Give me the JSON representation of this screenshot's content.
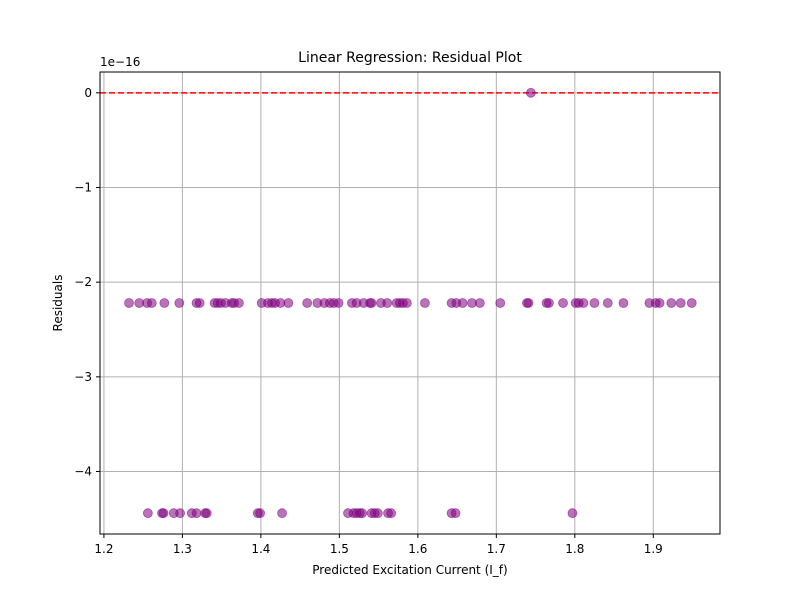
{
  "chart_data": {
    "type": "scatter",
    "title": "Linear Regression: Residual Plot",
    "xlabel": "Predicted Excitation Current (I_f)",
    "ylabel": "Residuals",
    "y_offset_text": "1e−16",
    "xlim": [
      1.195,
      1.985
    ],
    "ylim": [
      -4.66,
      0.22
    ],
    "x_ticks": [
      1.2,
      1.3,
      1.4,
      1.5,
      1.6,
      1.7,
      1.8,
      1.9
    ],
    "x_tick_labels": [
      "1.2",
      "1.3",
      "1.4",
      "1.5",
      "1.6",
      "1.7",
      "1.8",
      "1.9"
    ],
    "y_ticks": [
      0,
      -1,
      -2,
      -3,
      -4
    ],
    "y_tick_labels": [
      "0",
      "−1",
      "−2",
      "−3",
      "−4"
    ],
    "grid": true,
    "reference_line": {
      "y": 0,
      "color": "#ff0000",
      "style": "dashed"
    },
    "marker_color": "#800080",
    "marker_alpha": 0.55,
    "points": [
      {
        "x": 1.744,
        "y": 0
      },
      {
        "x": 1.232,
        "y": -2.22
      },
      {
        "x": 1.245,
        "y": -2.22
      },
      {
        "x": 1.255,
        "y": -2.22
      },
      {
        "x": 1.261,
        "y": -2.22
      },
      {
        "x": 1.277,
        "y": -2.22
      },
      {
        "x": 1.296,
        "y": -2.22
      },
      {
        "x": 1.318,
        "y": -2.22
      },
      {
        "x": 1.322,
        "y": -2.22
      },
      {
        "x": 1.341,
        "y": -2.22
      },
      {
        "x": 1.345,
        "y": -2.22
      },
      {
        "x": 1.349,
        "y": -2.22
      },
      {
        "x": 1.355,
        "y": -2.22
      },
      {
        "x": 1.363,
        "y": -2.22
      },
      {
        "x": 1.366,
        "y": -2.22
      },
      {
        "x": 1.372,
        "y": -2.22
      },
      {
        "x": 1.401,
        "y": -2.22
      },
      {
        "x": 1.409,
        "y": -2.22
      },
      {
        "x": 1.414,
        "y": -2.22
      },
      {
        "x": 1.418,
        "y": -2.22
      },
      {
        "x": 1.425,
        "y": -2.22
      },
      {
        "x": 1.435,
        "y": -2.22
      },
      {
        "x": 1.459,
        "y": -2.22
      },
      {
        "x": 1.472,
        "y": -2.22
      },
      {
        "x": 1.481,
        "y": -2.22
      },
      {
        "x": 1.488,
        "y": -2.22
      },
      {
        "x": 1.493,
        "y": -2.22
      },
      {
        "x": 1.499,
        "y": -2.22
      },
      {
        "x": 1.516,
        "y": -2.22
      },
      {
        "x": 1.522,
        "y": -2.22
      },
      {
        "x": 1.531,
        "y": -2.22
      },
      {
        "x": 1.539,
        "y": -2.22
      },
      {
        "x": 1.541,
        "y": -2.22
      },
      {
        "x": 1.553,
        "y": -2.22
      },
      {
        "x": 1.561,
        "y": -2.22
      },
      {
        "x": 1.573,
        "y": -2.22
      },
      {
        "x": 1.577,
        "y": -2.22
      },
      {
        "x": 1.581,
        "y": -2.22
      },
      {
        "x": 1.586,
        "y": -2.22
      },
      {
        "x": 1.609,
        "y": -2.22
      },
      {
        "x": 1.643,
        "y": -2.22
      },
      {
        "x": 1.649,
        "y": -2.22
      },
      {
        "x": 1.657,
        "y": -2.22
      },
      {
        "x": 1.669,
        "y": -2.22
      },
      {
        "x": 1.679,
        "y": -2.22
      },
      {
        "x": 1.705,
        "y": -2.22
      },
      {
        "x": 1.739,
        "y": -2.22
      },
      {
        "x": 1.741,
        "y": -2.22
      },
      {
        "x": 1.764,
        "y": -2.22
      },
      {
        "x": 1.767,
        "y": -2.22
      },
      {
        "x": 1.785,
        "y": -2.22
      },
      {
        "x": 1.801,
        "y": -2.22
      },
      {
        "x": 1.805,
        "y": -2.22
      },
      {
        "x": 1.811,
        "y": -2.22
      },
      {
        "x": 1.825,
        "y": -2.22
      },
      {
        "x": 1.842,
        "y": -2.22
      },
      {
        "x": 1.862,
        "y": -2.22
      },
      {
        "x": 1.895,
        "y": -2.22
      },
      {
        "x": 1.903,
        "y": -2.22
      },
      {
        "x": 1.908,
        "y": -2.22
      },
      {
        "x": 1.923,
        "y": -2.22
      },
      {
        "x": 1.935,
        "y": -2.22
      },
      {
        "x": 1.949,
        "y": -2.22
      },
      {
        "x": 1.256,
        "y": -4.44
      },
      {
        "x": 1.274,
        "y": -4.44
      },
      {
        "x": 1.276,
        "y": -4.44
      },
      {
        "x": 1.289,
        "y": -4.44
      },
      {
        "x": 1.297,
        "y": -4.44
      },
      {
        "x": 1.312,
        "y": -4.44
      },
      {
        "x": 1.318,
        "y": -4.44
      },
      {
        "x": 1.329,
        "y": -4.44
      },
      {
        "x": 1.331,
        "y": -4.44
      },
      {
        "x": 1.396,
        "y": -4.44
      },
      {
        "x": 1.399,
        "y": -4.44
      },
      {
        "x": 1.427,
        "y": -4.44
      },
      {
        "x": 1.511,
        "y": -4.44
      },
      {
        "x": 1.518,
        "y": -4.44
      },
      {
        "x": 1.522,
        "y": -4.44
      },
      {
        "x": 1.526,
        "y": -4.44
      },
      {
        "x": 1.529,
        "y": -4.44
      },
      {
        "x": 1.541,
        "y": -4.44
      },
      {
        "x": 1.545,
        "y": -4.44
      },
      {
        "x": 1.549,
        "y": -4.44
      },
      {
        "x": 1.562,
        "y": -4.44
      },
      {
        "x": 1.566,
        "y": -4.44
      },
      {
        "x": 1.643,
        "y": -4.44
      },
      {
        "x": 1.648,
        "y": -4.44
      },
      {
        "x": 1.797,
        "y": -4.44
      }
    ]
  }
}
